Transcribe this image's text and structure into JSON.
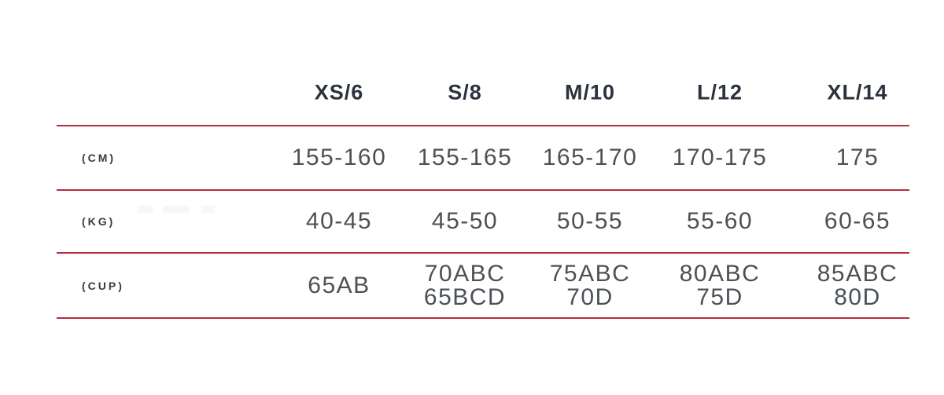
{
  "colors": {
    "rule": "#b02e3e",
    "header_text": "#2b323d",
    "value_text": "#4c5156",
    "label_text": "#383d43",
    "background": "#ffffff"
  },
  "chart_data": {
    "type": "table",
    "columns": [
      "XS/6",
      "S/8",
      "M/10",
      "L/12",
      "XL/14"
    ],
    "row_labels": [
      "(CM)",
      "(KG)",
      "(CUP)"
    ],
    "rows": [
      {
        "label": "(CM)",
        "cells": [
          [
            "155-160"
          ],
          [
            "155-165"
          ],
          [
            "165-170"
          ],
          [
            "170-175"
          ],
          [
            "175"
          ]
        ]
      },
      {
        "label": "(KG)",
        "cells": [
          [
            "40-45"
          ],
          [
            "45-50"
          ],
          [
            "50-55"
          ],
          [
            "55-60"
          ],
          [
            "60-65"
          ]
        ]
      },
      {
        "label": "(CUP)",
        "cells": [
          [
            "65AB"
          ],
          [
            "70ABC",
            "65BCD"
          ],
          [
            "75ABC",
            "70D"
          ],
          [
            "80ABC",
            "75D"
          ],
          [
            "85ABC",
            "80D"
          ]
        ]
      }
    ],
    "grid": "horizontal-red-rules",
    "legend_position": "none"
  }
}
